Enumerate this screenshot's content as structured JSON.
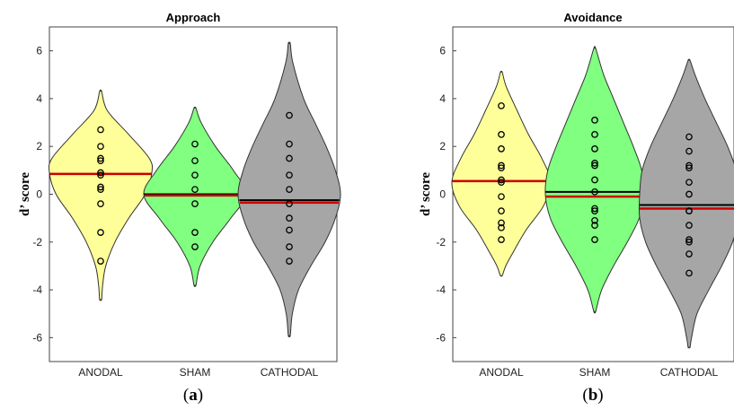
{
  "chart_data": [
    {
      "type": "violin",
      "title": "Approach",
      "ylabel": "d’ score",
      "caption_letter": "a",
      "ylim": [
        -7,
        7
      ],
      "yticks": [
        -6,
        -4,
        -2,
        0,
        2,
        4,
        6
      ],
      "categories": [
        "ANODAL",
        "SHAM",
        "CATHODAL"
      ],
      "colors": [
        "#ffff99",
        "#80ff80",
        "#a6a6a6"
      ],
      "groups": [
        {
          "category": "ANODAL",
          "mean": 0.85,
          "median": 0.85,
          "points": [
            2.7,
            2.0,
            1.5,
            1.4,
            0.9,
            0.8,
            0.3,
            0.2,
            -0.4,
            -1.6,
            -2.8
          ],
          "violin": [
            [
              4.3,
              0.02
            ],
            [
              3.5,
              0.13
            ],
            [
              2.5,
              0.55
            ],
            [
              1.5,
              0.95
            ],
            [
              0.9,
              1.0
            ],
            [
              0,
              0.87
            ],
            [
              -1,
              0.55
            ],
            [
              -2,
              0.28
            ],
            [
              -3,
              0.1
            ],
            [
              -3.8,
              0.04
            ],
            [
              -4.4,
              0.02
            ]
          ]
        },
        {
          "category": "SHAM",
          "mean": -0.05,
          "median": 0.0,
          "points": [
            2.1,
            1.4,
            0.8,
            0.2,
            -0.4,
            -1.6,
            -2.2
          ],
          "violin": [
            [
              3.6,
              0.02
            ],
            [
              3.0,
              0.12
            ],
            [
              2.0,
              0.4
            ],
            [
              1.0,
              0.75
            ],
            [
              0,
              1.0
            ],
            [
              -1,
              0.7
            ],
            [
              -2,
              0.35
            ],
            [
              -3,
              0.1
            ],
            [
              -3.8,
              0.02
            ]
          ]
        },
        {
          "category": "CATHODAL",
          "mean": -0.35,
          "median": -0.25,
          "points": [
            3.3,
            2.1,
            1.5,
            0.8,
            0.2,
            -0.4,
            -1.0,
            -1.5,
            -2.2,
            -2.8
          ],
          "violin": [
            [
              6.3,
              0.02
            ],
            [
              5.5,
              0.07
            ],
            [
              4.0,
              0.28
            ],
            [
              3.0,
              0.5
            ],
            [
              2.0,
              0.72
            ],
            [
              1.0,
              0.9
            ],
            [
              0,
              1.0
            ],
            [
              -1,
              0.9
            ],
            [
              -2,
              0.7
            ],
            [
              -3,
              0.42
            ],
            [
              -4,
              0.18
            ],
            [
              -5,
              0.06
            ],
            [
              -5.9,
              0.02
            ]
          ]
        }
      ]
    },
    {
      "type": "violin",
      "title": "Avoidance",
      "ylabel": "d’ score",
      "caption_letter": "b",
      "ylim": [
        -7,
        7
      ],
      "yticks": [
        -6,
        -4,
        -2,
        0,
        2,
        4,
        6
      ],
      "categories": [
        "ANODAL",
        "SHAM",
        "CATHODAL"
      ],
      "colors": [
        "#ffff99",
        "#80ff80",
        "#a6a6a6"
      ],
      "groups": [
        {
          "category": "ANODAL",
          "mean": 0.55,
          "median": 0.55,
          "points": [
            3.7,
            2.5,
            1.9,
            1.2,
            1.1,
            0.6,
            0.5,
            -0.1,
            -0.7,
            -1.2,
            -1.4,
            -1.9
          ],
          "violin": [
            [
              5.1,
              0.02
            ],
            [
              4.5,
              0.1
            ],
            [
              3.5,
              0.32
            ],
            [
              2.5,
              0.55
            ],
            [
              1.5,
              0.82
            ],
            [
              0.5,
              1.0
            ],
            [
              -0.5,
              0.85
            ],
            [
              -1.5,
              0.5
            ],
            [
              -2.5,
              0.22
            ],
            [
              -3.0,
              0.09
            ],
            [
              -3.4,
              0.02
            ]
          ]
        },
        {
          "category": "SHAM",
          "mean": -0.1,
          "median": 0.1,
          "points": [
            3.1,
            2.5,
            1.9,
            1.3,
            1.2,
            0.6,
            0.1,
            -0.6,
            -0.7,
            -1.1,
            -1.3,
            -1.9
          ],
          "violin": [
            [
              6.1,
              0.02
            ],
            [
              5.0,
              0.18
            ],
            [
              4.0,
              0.38
            ],
            [
              3.0,
              0.58
            ],
            [
              2.0,
              0.78
            ],
            [
              1.0,
              0.95
            ],
            [
              0,
              1.0
            ],
            [
              -1,
              0.9
            ],
            [
              -2,
              0.66
            ],
            [
              -3,
              0.38
            ],
            [
              -4,
              0.14
            ],
            [
              -4.9,
              0.02
            ]
          ]
        },
        {
          "category": "CATHODAL",
          "mean": -0.6,
          "median": -0.45,
          "points": [
            2.4,
            1.8,
            1.2,
            1.1,
            0.5,
            0.0,
            -0.7,
            -0.7,
            -1.3,
            -1.9,
            -2.0,
            -2.5,
            -3.3
          ],
          "violin": [
            [
              5.6,
              0.02
            ],
            [
              5.0,
              0.12
            ],
            [
              4.0,
              0.32
            ],
            [
              3.0,
              0.55
            ],
            [
              2.0,
              0.78
            ],
            [
              1.0,
              0.95
            ],
            [
              0,
              1.0
            ],
            [
              -1,
              1.0
            ],
            [
              -2,
              0.88
            ],
            [
              -3,
              0.66
            ],
            [
              -4,
              0.4
            ],
            [
              -5,
              0.16
            ],
            [
              -6,
              0.05
            ],
            [
              -6.4,
              0.02
            ]
          ]
        }
      ]
    }
  ]
}
